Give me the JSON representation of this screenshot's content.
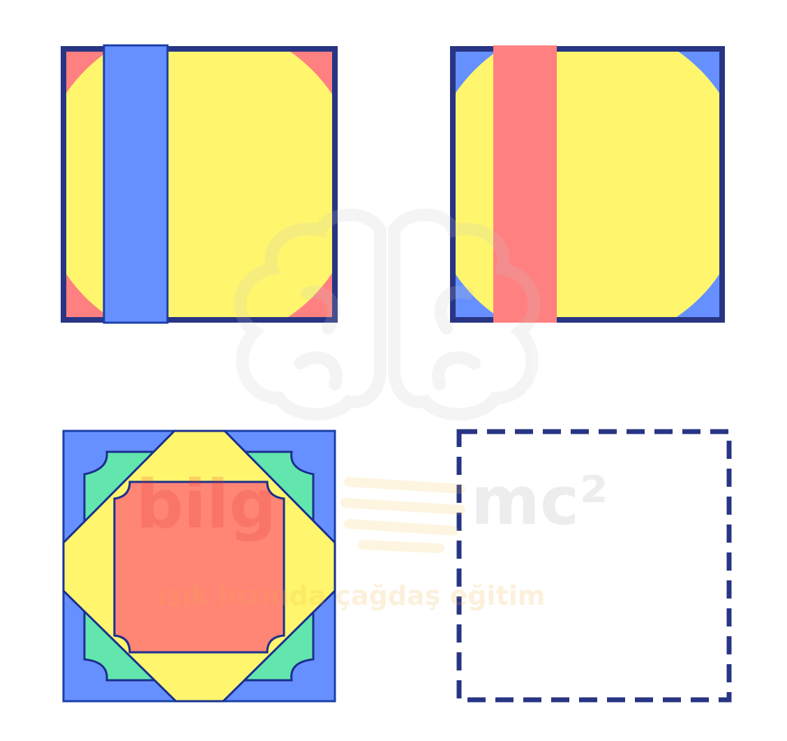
{
  "watermark": {
    "brand_left": "bilg",
    "brand_right": "mc²",
    "slogan": "ışık hızında çağdaş eğitim",
    "logo_icon": "brain-logo-icon"
  },
  "colors": {
    "navy": "#283584",
    "border_blue": "#1b3fa8",
    "red": "#ff8080",
    "blue": "#6690ff",
    "yellow": "#fff66e",
    "green": "#62e6ad",
    "salmon": "#ff8575"
  },
  "panels": [
    {
      "name": "panel-top-left",
      "description_icon": "square-circle-stripe-icon"
    },
    {
      "name": "panel-top-right",
      "description_icon": "square-circle-stripe-icon"
    },
    {
      "name": "panel-bottom-left",
      "description_icon": "nested-squares-icon"
    },
    {
      "name": "panel-bottom-right",
      "description_icon": "empty-dashed-square-icon"
    }
  ]
}
